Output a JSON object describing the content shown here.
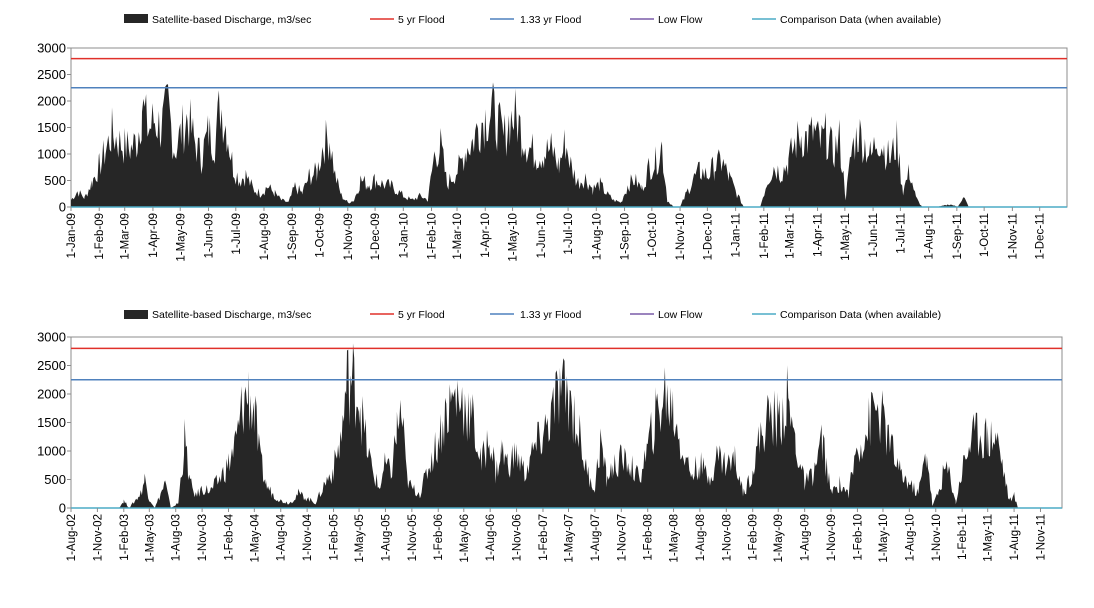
{
  "colors": {
    "discharge": "#262626",
    "flood5": "#e0302a",
    "flood133": "#4f81bd",
    "lowflow": "#7a5ca8",
    "comparison": "#4bacc6",
    "axis": "#8c8c8c"
  },
  "legend": {
    "discharge": "Satellite-based Discharge, m3/sec",
    "flood5": "5 yr Flood",
    "flood133": "1.33 yr Flood",
    "lowflow": "Low Flow",
    "comparison": "Comparison Data (when available)"
  },
  "chart_data": [
    {
      "type": "area",
      "title": "",
      "xlabel": "",
      "ylabel": "",
      "x_range": [
        "2009-01-01",
        "2011-12-31"
      ],
      "ylim": [
        0,
        3000
      ],
      "y_ticks": [
        0,
        500,
        1000,
        1500,
        2000,
        2500,
        3000
      ],
      "x_tick_labels": [
        "1-Jan-09",
        "1-Feb-09",
        "1-Mar-09",
        "1-Apr-09",
        "1-May-09",
        "1-Jun-09",
        "1-Jul-09",
        "1-Aug-09",
        "1-Sep-09",
        "1-Oct-09",
        "1-Nov-09",
        "1-Dec-09",
        "1-Jan-10",
        "1-Feb-10",
        "1-Mar-10",
        "1-Apr-10",
        "1-May-10",
        "1-Jun-10",
        "1-Jul-10",
        "1-Aug-10",
        "1-Sep-10",
        "1-Oct-10",
        "1-Nov-10",
        "1-Dec-10",
        "1-Jan-11",
        "1-Feb-11",
        "1-Mar-11",
        "1-Apr-11",
        "1-May-11",
        "1-Jun-11",
        "1-Jul-11",
        "1-Aug-11",
        "1-Sep-11",
        "1-Oct-11",
        "1-Nov-11",
        "1-Dec-11"
      ],
      "legend_position": "top",
      "grid": false,
      "flood_5yr": 2800,
      "flood_1_33yr": 2250,
      "low_flow": 0,
      "comparison": 0,
      "discharge_points": [
        [
          "2009-01-01",
          150
        ],
        [
          "2009-01-08",
          350
        ],
        [
          "2009-01-16",
          200
        ],
        [
          "2009-01-24",
          550
        ],
        [
          "2009-02-01",
          900
        ],
        [
          "2009-02-08",
          1250
        ],
        [
          "2009-02-15",
          1650
        ],
        [
          "2009-02-22",
          1450
        ],
        [
          "2009-03-01",
          1350
        ],
        [
          "2009-03-08",
          1300
        ],
        [
          "2009-03-15",
          1500
        ],
        [
          "2009-03-20",
          2250
        ],
        [
          "2009-03-27",
          1700
        ],
        [
          "2009-04-03",
          1950
        ],
        [
          "2009-04-10",
          1750
        ],
        [
          "2009-04-18",
          2200
        ],
        [
          "2009-04-25",
          1250
        ],
        [
          "2009-05-02",
          1650
        ],
        [
          "2009-05-09",
          2000
        ],
        [
          "2009-05-16",
          1500
        ],
        [
          "2009-05-24",
          1100
        ],
        [
          "2009-06-01",
          1650
        ],
        [
          "2009-06-08",
          1450
        ],
        [
          "2009-06-14",
          2300
        ],
        [
          "2009-06-21",
          1750
        ],
        [
          "2009-06-28",
          900
        ],
        [
          "2009-07-05",
          600
        ],
        [
          "2009-07-12",
          700
        ],
        [
          "2009-07-20",
          400
        ],
        [
          "2009-07-28",
          300
        ],
        [
          "2009-08-05",
          450
        ],
        [
          "2009-08-13",
          300
        ],
        [
          "2009-08-20",
          150
        ],
        [
          "2009-08-28",
          100
        ],
        [
          "2009-09-04",
          450
        ],
        [
          "2009-09-12",
          300
        ],
        [
          "2009-09-20",
          700
        ],
        [
          "2009-09-28",
          750
        ],
        [
          "2009-10-05",
          1400
        ],
        [
          "2009-10-12",
          1550
        ],
        [
          "2009-10-18",
          700
        ],
        [
          "2009-10-25",
          250
        ],
        [
          "2009-11-01",
          100
        ],
        [
          "2009-11-08",
          150
        ],
        [
          "2009-11-15",
          600
        ],
        [
          "2009-11-23",
          500
        ],
        [
          "2009-12-01",
          600
        ],
        [
          "2009-12-10",
          500
        ],
        [
          "2009-12-20",
          450
        ],
        [
          "2010-01-01",
          250
        ],
        [
          "2010-01-10",
          150
        ],
        [
          "2010-01-20",
          250
        ],
        [
          "2010-01-28",
          150
        ],
        [
          "2010-02-04",
          1150
        ],
        [
          "2010-02-11",
          1350
        ],
        [
          "2010-02-18",
          500
        ],
        [
          "2010-02-25",
          700
        ],
        [
          "2010-03-04",
          900
        ],
        [
          "2010-03-11",
          1300
        ],
        [
          "2010-03-18",
          1450
        ],
        [
          "2010-03-25",
          1800
        ],
        [
          "2010-04-01",
          2000
        ],
        [
          "2010-04-08",
          2150
        ],
        [
          "2010-04-14",
          1900
        ],
        [
          "2010-04-21",
          1500
        ],
        [
          "2010-04-28",
          1950
        ],
        [
          "2010-05-05",
          2000
        ],
        [
          "2010-05-12",
          1600
        ],
        [
          "2010-05-20",
          1300
        ],
        [
          "2010-05-28",
          1150
        ],
        [
          "2010-06-05",
          1200
        ],
        [
          "2010-06-13",
          1300
        ],
        [
          "2010-06-21",
          900
        ],
        [
          "2010-06-28",
          1450
        ],
        [
          "2010-07-05",
          850
        ],
        [
          "2010-07-12",
          550
        ],
        [
          "2010-07-20",
          650
        ],
        [
          "2010-07-28",
          400
        ],
        [
          "2010-08-05",
          500
        ],
        [
          "2010-08-12",
          300
        ],
        [
          "2010-08-20",
          150
        ],
        [
          "2010-08-28",
          100
        ],
        [
          "2010-09-05",
          500
        ],
        [
          "2010-09-12",
          600
        ],
        [
          "2010-09-20",
          400
        ],
        [
          "2010-09-28",
          900
        ],
        [
          "2010-10-05",
          1000
        ],
        [
          "2010-10-12",
          1350
        ],
        [
          "2010-10-18",
          150
        ],
        [
          "2010-10-25",
          0
        ],
        [
          "2010-11-01",
          0
        ],
        [
          "2010-11-08",
          300
        ],
        [
          "2010-11-15",
          600
        ],
        [
          "2010-11-23",
          800
        ],
        [
          "2010-12-01",
          700
        ],
        [
          "2010-12-09",
          900
        ],
        [
          "2010-12-17",
          1000
        ],
        [
          "2010-12-25",
          650
        ],
        [
          "2011-01-01",
          350
        ],
        [
          "2011-01-10",
          0
        ],
        [
          "2011-01-20",
          0
        ],
        [
          "2011-01-28",
          0
        ],
        [
          "2011-02-05",
          600
        ],
        [
          "2011-02-12",
          900
        ],
        [
          "2011-02-20",
          750
        ],
        [
          "2011-02-28",
          1000
        ],
        [
          "2011-03-07",
          1400
        ],
        [
          "2011-03-14",
          1600
        ],
        [
          "2011-03-21",
          1500
        ],
        [
          "2011-03-28",
          1650
        ],
        [
          "2011-04-04",
          1400
        ],
        [
          "2011-04-11",
          1600
        ],
        [
          "2011-04-18",
          1200
        ],
        [
          "2011-04-25",
          1500
        ],
        [
          "2011-05-02",
          200
        ],
        [
          "2011-05-09",
          1300
        ],
        [
          "2011-05-16",
          1650
        ],
        [
          "2011-05-23",
          1400
        ],
        [
          "2011-05-30",
          1100
        ],
        [
          "2011-06-06",
          1600
        ],
        [
          "2011-06-13",
          1300
        ],
        [
          "2011-06-20",
          1050
        ],
        [
          "2011-06-27",
          1450
        ],
        [
          "2011-07-04",
          350
        ],
        [
          "2011-07-11",
          800
        ],
        [
          "2011-07-18",
          200
        ],
        [
          "2011-07-25",
          0
        ],
        [
          "2011-08-10",
          0
        ],
        [
          "2011-08-25",
          60
        ],
        [
          "2011-09-02",
          0
        ],
        [
          "2011-09-08",
          250
        ],
        [
          "2011-09-14",
          0
        ],
        [
          "2011-12-31",
          0
        ]
      ]
    },
    {
      "type": "area",
      "title": "",
      "xlabel": "",
      "ylabel": "",
      "x_range": [
        "2002-08-01",
        "2012-01-15"
      ],
      "ylim": [
        0,
        3000
      ],
      "y_ticks": [
        0,
        500,
        1000,
        1500,
        2000,
        2500,
        3000
      ],
      "x_tick_labels": [
        "1-Aug-02",
        "1-Nov-02",
        "1-Feb-03",
        "1-May-03",
        "1-Aug-03",
        "1-Nov-03",
        "1-Feb-04",
        "1-May-04",
        "1-Aug-04",
        "1-Nov-04",
        "1-Feb-05",
        "1-May-05",
        "1-Aug-05",
        "1-Nov-05",
        "1-Feb-06",
        "1-May-06",
        "1-Aug-06",
        "1-Nov-06",
        "1-Feb-07",
        "1-May-07",
        "1-Aug-07",
        "1-Nov-07",
        "1-Feb-08",
        "1-May-08",
        "1-Aug-08",
        "1-Nov-08",
        "1-Feb-09",
        "1-May-09",
        "1-Aug-09",
        "1-Nov-09",
        "1-Feb-10",
        "1-May-10",
        "1-Aug-10",
        "1-Nov-10",
        "1-Feb-11",
        "1-May-11",
        "1-Aug-11",
        "1-Nov-11"
      ],
      "legend_position": "top",
      "grid": false,
      "flood_5yr": 2800,
      "flood_1_33yr": 2250,
      "low_flow": 0,
      "comparison": 0,
      "discharge_points": [
        [
          "2002-08-01",
          0
        ],
        [
          "2003-01-15",
          0
        ],
        [
          "2003-02-01",
          150
        ],
        [
          "2003-02-20",
          0
        ],
        [
          "2003-04-01",
          300
        ],
        [
          "2003-04-15",
          600
        ],
        [
          "2003-05-01",
          200
        ],
        [
          "2003-05-20",
          0
        ],
        [
          "2003-06-10",
          300
        ],
        [
          "2003-06-25",
          500
        ],
        [
          "2003-07-15",
          0
        ],
        [
          "2003-08-10",
          100
        ],
        [
          "2003-09-01",
          1400
        ],
        [
          "2003-09-20",
          500
        ],
        [
          "2003-10-10",
          250
        ],
        [
          "2003-11-01",
          400
        ],
        [
          "2003-12-01",
          350
        ],
        [
          "2004-01-01",
          600
        ],
        [
          "2004-02-01",
          900
        ],
        [
          "2004-03-01",
          1400
        ],
        [
          "2004-03-20",
          2100
        ],
        [
          "2004-04-10",
          2350
        ],
        [
          "2004-05-01",
          2000
        ],
        [
          "2004-05-20",
          1000
        ],
        [
          "2004-06-10",
          500
        ],
        [
          "2004-07-01",
          300
        ],
        [
          "2004-08-01",
          150
        ],
        [
          "2004-09-01",
          100
        ],
        [
          "2004-10-01",
          300
        ],
        [
          "2004-11-01",
          200
        ],
        [
          "2004-12-01",
          100
        ],
        [
          "2005-01-01",
          500
        ],
        [
          "2005-02-01",
          800
        ],
        [
          "2005-03-01",
          1500
        ],
        [
          "2005-03-20",
          2600
        ],
        [
          "2005-04-10",
          2650
        ],
        [
          "2005-05-01",
          2300
        ],
        [
          "2005-05-20",
          1500
        ],
        [
          "2005-06-15",
          800
        ],
        [
          "2005-07-10",
          400
        ],
        [
          "2005-08-01",
          900
        ],
        [
          "2005-08-20",
          700
        ],
        [
          "2005-09-10",
          1600
        ],
        [
          "2005-09-25",
          2000
        ],
        [
          "2005-10-15",
          600
        ],
        [
          "2005-11-01",
          400
        ],
        [
          "2005-12-01",
          300
        ],
        [
          "2006-01-01",
          900
        ],
        [
          "2006-02-01",
          1400
        ],
        [
          "2006-03-01",
          2000
        ],
        [
          "2006-04-01",
          2300
        ],
        [
          "2006-05-01",
          2150
        ],
        [
          "2006-06-01",
          1800
        ],
        [
          "2006-07-01",
          900
        ],
        [
          "2006-08-01",
          1500
        ],
        [
          "2006-08-20",
          700
        ],
        [
          "2006-09-10",
          1200
        ],
        [
          "2006-10-01",
          900
        ],
        [
          "2006-11-01",
          1100
        ],
        [
          "2006-12-01",
          700
        ],
        [
          "2007-01-01",
          1200
        ],
        [
          "2007-02-01",
          1500
        ],
        [
          "2007-03-01",
          1900
        ],
        [
          "2007-04-01",
          2400
        ],
        [
          "2007-05-01",
          2300
        ],
        [
          "2007-06-01",
          1700
        ],
        [
          "2007-07-01",
          800
        ],
        [
          "2007-08-01",
          400
        ],
        [
          "2007-08-20",
          1400
        ],
        [
          "2007-09-10",
          600
        ],
        [
          "2007-10-01",
          800
        ],
        [
          "2007-11-01",
          1000
        ],
        [
          "2007-12-01",
          900
        ],
        [
          "2008-01-01",
          600
        ],
        [
          "2008-02-01",
          1200
        ],
        [
          "2008-03-01",
          1900
        ],
        [
          "2008-04-01",
          2350
        ],
        [
          "2008-05-01",
          2000
        ],
        [
          "2008-06-01",
          1200
        ],
        [
          "2008-07-01",
          700
        ],
        [
          "2008-08-01",
          900
        ],
        [
          "2008-09-01",
          600
        ],
        [
          "2008-10-01",
          1100
        ],
        [
          "2008-11-01",
          900
        ],
        [
          "2008-12-01",
          1000
        ],
        [
          "2009-01-01",
          300
        ],
        [
          "2009-02-01",
          800
        ],
        [
          "2009-03-01",
          1500
        ],
        [
          "2009-04-01",
          1900
        ],
        [
          "2009-05-01",
          1800
        ],
        [
          "2009-06-01",
          2200
        ],
        [
          "2009-07-01",
          1300
        ],
        [
          "2009-08-01",
          500
        ],
        [
          "2009-09-01",
          700
        ],
        [
          "2009-10-01",
          1400
        ],
        [
          "2009-11-01",
          300
        ],
        [
          "2009-12-01",
          500
        ],
        [
          "2010-01-01",
          300
        ],
        [
          "2010-02-01",
          1300
        ],
        [
          "2010-03-01",
          1500
        ],
        [
          "2010-04-01",
          2100
        ],
        [
          "2010-05-01",
          1800
        ],
        [
          "2010-06-01",
          1200
        ],
        [
          "2010-07-01",
          700
        ],
        [
          "2010-08-01",
          500
        ],
        [
          "2010-09-01",
          300
        ],
        [
          "2010-10-01",
          1200
        ],
        [
          "2010-10-20",
          50
        ],
        [
          "2010-11-10",
          300
        ],
        [
          "2010-12-01",
          800
        ],
        [
          "2010-12-20",
          700
        ],
        [
          "2011-01-10",
          100
        ],
        [
          "2011-02-01",
          800
        ],
        [
          "2011-03-01",
          1400
        ],
        [
          "2011-04-01",
          1600
        ],
        [
          "2011-05-01",
          1450
        ],
        [
          "2011-06-01",
          1500
        ],
        [
          "2011-06-25",
          800
        ],
        [
          "2011-07-15",
          150
        ],
        [
          "2011-08-01",
          250
        ],
        [
          "2011-08-15",
          0
        ],
        [
          "2012-01-15",
          0
        ]
      ]
    }
  ]
}
